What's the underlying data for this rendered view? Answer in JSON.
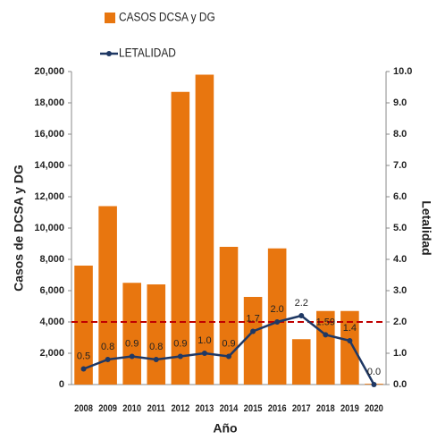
{
  "chart_data": {
    "type": "bar_line",
    "categories": [
      "2008",
      "2009",
      "2010",
      "2011",
      "2012",
      "2013",
      "2014",
      "2015",
      "2016",
      "2017",
      "2018",
      "2019",
      "2020"
    ],
    "series": [
      {
        "name": "CASOS DCSA y DG",
        "type": "bar",
        "color": "#e8760f",
        "axis": "y",
        "values": [
          7600,
          11400,
          6500,
          6400,
          18700,
          19800,
          8800,
          5600,
          8700,
          2900,
          4700,
          4700,
          50
        ]
      },
      {
        "name": "LETALIDAD",
        "type": "line",
        "color": "#1f3864",
        "axis": "y2",
        "values": [
          0.5,
          0.8,
          0.9,
          0.8,
          0.9,
          1.0,
          0.9,
          1.7,
          2.0,
          2.2,
          1.59,
          1.4,
          0.0
        ],
        "value_labels": [
          "0.5",
          "0.8",
          "0.9",
          "0.8",
          "0.9",
          "1.0",
          "0.9",
          "1.7",
          "2.0",
          "2.2",
          "1.59",
          "1.4",
          "0.0"
        ]
      }
    ],
    "xlabel": "Año",
    "ylabel": "Casos de DCSA y DG",
    "y2label": "Letalidad",
    "ylim": [
      0,
      20000
    ],
    "yticks": [
      0,
      {
        "value": 2000,
        "label": "2,000"
      },
      {
        "value": 4000,
        "label": "4,000"
      },
      {
        "value": 6000,
        "label": "6,000"
      },
      {
        "value": 8000,
        "label": "8,000"
      },
      {
        "value": 10000,
        "label": "10,000"
      },
      {
        "value": 12000,
        "label": "12,000"
      },
      {
        "value": 14000,
        "label": "14,000"
      },
      {
        "value": 16000,
        "label": "16,000"
      },
      {
        "value": 18000,
        "label": "18,000"
      },
      {
        "value": 20000,
        "label": "20,000"
      }
    ],
    "y2lim": [
      0,
      10
    ],
    "y2ticks": [
      {
        "value": 0,
        "label": "0.0"
      },
      {
        "value": 1,
        "label": "1.0"
      },
      {
        "value": 2,
        "label": "2.0"
      },
      {
        "value": 3,
        "label": "3.0"
      },
      {
        "value": 4,
        "label": "4.0"
      },
      {
        "value": 5,
        "label": "5.0"
      },
      {
        "value": 6,
        "label": "6.0"
      },
      {
        "value": 7,
        "label": "7.0"
      },
      {
        "value": 8,
        "label": "8.0"
      },
      {
        "value": 9,
        "label": "9.0"
      },
      {
        "value": 10,
        "label": "10.0"
      }
    ],
    "reference_line": {
      "axis": "y2",
      "value": 2,
      "color": "#c00000"
    },
    "legend": "top"
  }
}
